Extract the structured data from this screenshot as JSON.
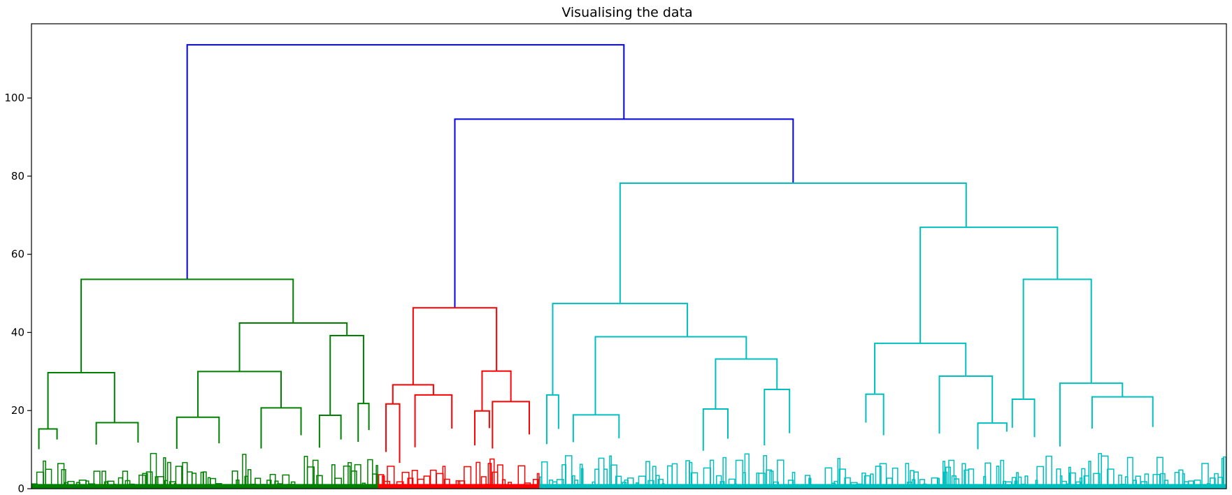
{
  "chart_data": {
    "type": "dendrogram",
    "title": "Visualising the data",
    "xlabel": "",
    "ylabel": "",
    "ylim": [
      0,
      119
    ],
    "yticks": [
      0,
      20,
      40,
      60,
      80,
      100
    ],
    "ytick_labels": [
      "0",
      "20",
      "40",
      "60",
      "80",
      "100"
    ],
    "x_range": [
      0,
      1000
    ],
    "grid": false,
    "colors": {
      "root": "#0000ff",
      "cluster_1": "#008000",
      "cluster_2": "#ff0000",
      "cluster_3": "#00bfbf"
    },
    "clusters": [
      {
        "color": "cluster_1",
        "leaf_range": [
          0,
          290
        ]
      },
      {
        "color": "cluster_2",
        "leaf_range": [
          290,
          425
        ]
      },
      {
        "color": "cluster_3",
        "leaf_range": [
          425,
          1000
        ]
      }
    ],
    "merges": [
      {
        "h": 113.6,
        "x": [
          130.3,
          495.8
        ],
        "y": [
          53.6,
          94.6
        ],
        "color": "root"
      },
      {
        "h": 94.6,
        "x": [
          354.3,
          637.4
        ],
        "y": [
          46.3,
          78.2
        ],
        "color": "root"
      },
      {
        "h": 53.6,
        "x": [
          41.6,
          219.0
        ],
        "y": [
          29.7,
          42.4
        ],
        "color": "cluster_1"
      },
      {
        "h": 29.7,
        "x": [
          13.8,
          69.5
        ],
        "y": [
          15.3,
          16.9
        ],
        "color": "cluster_1"
      },
      {
        "h": 42.4,
        "x": [
          174.1,
          264.0
        ],
        "y": [
          30.0,
          39.2
        ],
        "color": "cluster_1"
      },
      {
        "h": 30.0,
        "x": [
          139.3,
          208.9
        ],
        "y": [
          18.3,
          20.7
        ],
        "color": "cluster_1"
      },
      {
        "h": 39.2,
        "x": [
          250.0,
          277.9
        ],
        "y": [
          18.8,
          21.8
        ],
        "color": "cluster_1"
      },
      {
        "h": 16.9,
        "x": [
          54.2,
          89.2
        ],
        "y": [
          11.3,
          11.8
        ],
        "color": "cluster_1"
      },
      {
        "h": 15.3,
        "x": [
          6.2,
          21.4
        ],
        "y": [
          10.1,
          12.6
        ],
        "color": "cluster_1"
      },
      {
        "h": 18.3,
        "x": [
          121.6,
          157.0
        ],
        "y": [
          10.2,
          11.6
        ],
        "color": "cluster_1"
      },
      {
        "h": 20.7,
        "x": [
          192.2,
          225.6
        ],
        "y": [
          10.3,
          13.7
        ],
        "color": "cluster_1"
      },
      {
        "h": 18.8,
        "x": [
          241.0,
          259.0
        ],
        "y": [
          10.5,
          12.6
        ],
        "color": "cluster_1"
      },
      {
        "h": 21.8,
        "x": [
          273.4,
          282.4
        ],
        "y": [
          12.0,
          15.0
        ],
        "color": "cluster_1"
      },
      {
        "h": 46.3,
        "x": [
          319.4,
          389.2
        ],
        "y": [
          26.6,
          30.1
        ],
        "color": "cluster_2"
      },
      {
        "h": 26.6,
        "x": [
          302.4,
          336.4
        ],
        "y": [
          21.7,
          24.0
        ],
        "color": "cluster_2"
      },
      {
        "h": 30.1,
        "x": [
          377.1,
          401.2
        ],
        "y": [
          19.9,
          22.3
        ],
        "color": "cluster_2"
      },
      {
        "h": 24.0,
        "x": [
          321.0,
          351.8
        ],
        "y": [
          10.6,
          15.4
        ],
        "color": "cluster_2"
      },
      {
        "h": 22.3,
        "x": [
          385.8,
          416.6
        ],
        "y": [
          10.3,
          13.9
        ],
        "color": "cluster_2"
      },
      {
        "h": 21.7,
        "x": [
          296.7,
          308.1
        ],
        "y": [
          9.4,
          6.6
        ],
        "color": "cluster_2"
      },
      {
        "h": 19.9,
        "x": [
          371.0,
          383.2
        ],
        "y": [
          11.1,
          15.5
        ],
        "color": "cluster_2"
      },
      {
        "h": 78.2,
        "x": [
          492.6,
          782.2
        ],
        "y": [
          47.4,
          66.9
        ],
        "color": "cluster_3"
      },
      {
        "h": 47.4,
        "x": [
          436.2,
          548.9
        ],
        "y": [
          24.0,
          38.9
        ],
        "color": "cluster_3"
      },
      {
        "h": 38.9,
        "x": [
          471.9,
          598.2
        ],
        "y": [
          18.9,
          33.2
        ],
        "color": "cluster_3"
      },
      {
        "h": 33.2,
        "x": [
          572.5,
          623.9
        ],
        "y": [
          20.4,
          25.4
        ],
        "color": "cluster_3"
      },
      {
        "h": 18.9,
        "x": [
          453.4,
          491.7
        ],
        "y": [
          11.9,
          12.9
        ],
        "color": "cluster_3"
      },
      {
        "h": 24.0,
        "x": [
          431.2,
          441.1
        ],
        "y": [
          11.4,
          15.3
        ],
        "color": "cluster_3"
      },
      {
        "h": 20.4,
        "x": [
          562.2,
          582.8
        ],
        "y": [
          9.7,
          12.8
        ],
        "color": "cluster_3"
      },
      {
        "h": 25.4,
        "x": [
          613.4,
          634.4
        ],
        "y": [
          11.1,
          14.2
        ],
        "color": "cluster_3"
      },
      {
        "h": 66.9,
        "x": [
          743.8,
          858.6
        ],
        "y": [
          37.2,
          53.6
        ],
        "color": "cluster_3"
      },
      {
        "h": 37.2,
        "x": [
          705.7,
          781.9
        ],
        "y": [
          24.2,
          28.8
        ],
        "color": "cluster_3"
      },
      {
        "h": 28.8,
        "x": [
          759.8,
          804.1
        ],
        "y": [
          14.1,
          16.8
        ],
        "color": "cluster_3"
      },
      {
        "h": 24.2,
        "x": [
          698.3,
          713.1
        ],
        "y": [
          16.9,
          13.7
        ],
        "color": "cluster_3"
      },
      {
        "h": 16.8,
        "x": [
          792.0,
          816.2
        ],
        "y": [
          10.1,
          14.6
        ],
        "color": "cluster_3"
      },
      {
        "h": 53.6,
        "x": [
          830.1,
          886.9
        ],
        "y": [
          22.9,
          27.0
        ],
        "color": "cluster_3"
      },
      {
        "h": 22.9,
        "x": [
          820.8,
          839.4
        ],
        "y": [
          15.6,
          13.2
        ],
        "color": "cluster_3"
      },
      {
        "h": 27.0,
        "x": [
          860.7,
          913.0
        ],
        "y": [
          10.8,
          23.5
        ],
        "color": "cluster_3"
      },
      {
        "h": 23.5,
        "x": [
          887.6,
          938.4
        ],
        "y": [
          15.4,
          15.8
        ],
        "color": "cluster_3"
      }
    ]
  }
}
